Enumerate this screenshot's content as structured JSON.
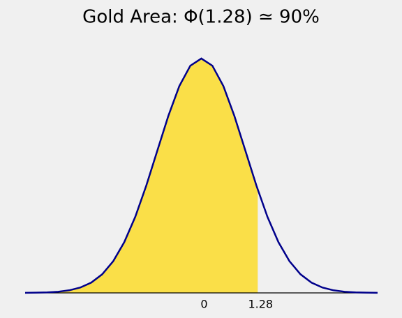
{
  "chart_data": {
    "type": "area",
    "title": "Gold Area: Φ(1.28) ≃ 90%",
    "x": [
      -4,
      -3.75,
      -3.5,
      -3.25,
      -3,
      -2.75,
      -2.5,
      -2.25,
      -2,
      -1.75,
      -1.5,
      -1.25,
      -1,
      -0.75,
      -0.5,
      -0.25,
      0,
      0.25,
      0.5,
      0.75,
      1,
      1.25,
      1.5,
      1.75,
      2,
      2.25,
      2.5,
      2.75,
      3,
      3.25,
      3.5,
      3.75,
      4
    ],
    "series": [
      {
        "color": "#00008b",
        "values": [
          0.0001,
          0.0004,
          0.0009,
          0.002,
          0.0044,
          0.0091,
          0.0175,
          0.0317,
          0.054,
          0.0863,
          0.1295,
          0.1826,
          0.242,
          0.3011,
          0.3521,
          0.3867,
          0.3989,
          0.3867,
          0.3521,
          0.3011,
          0.242,
          0.1826,
          0.1295,
          0.0863,
          0.054,
          0.0317,
          0.0175,
          0.0091,
          0.0044,
          0.002,
          0.0009,
          0.0004,
          0.0001
        ]
      }
    ],
    "shade_to": 1.28,
    "shade_color": "#fadf48",
    "xlim": [
      -4,
      4
    ],
    "ylim": [
      0,
      0.4
    ],
    "xticks": [
      0,
      1.28
    ]
  }
}
